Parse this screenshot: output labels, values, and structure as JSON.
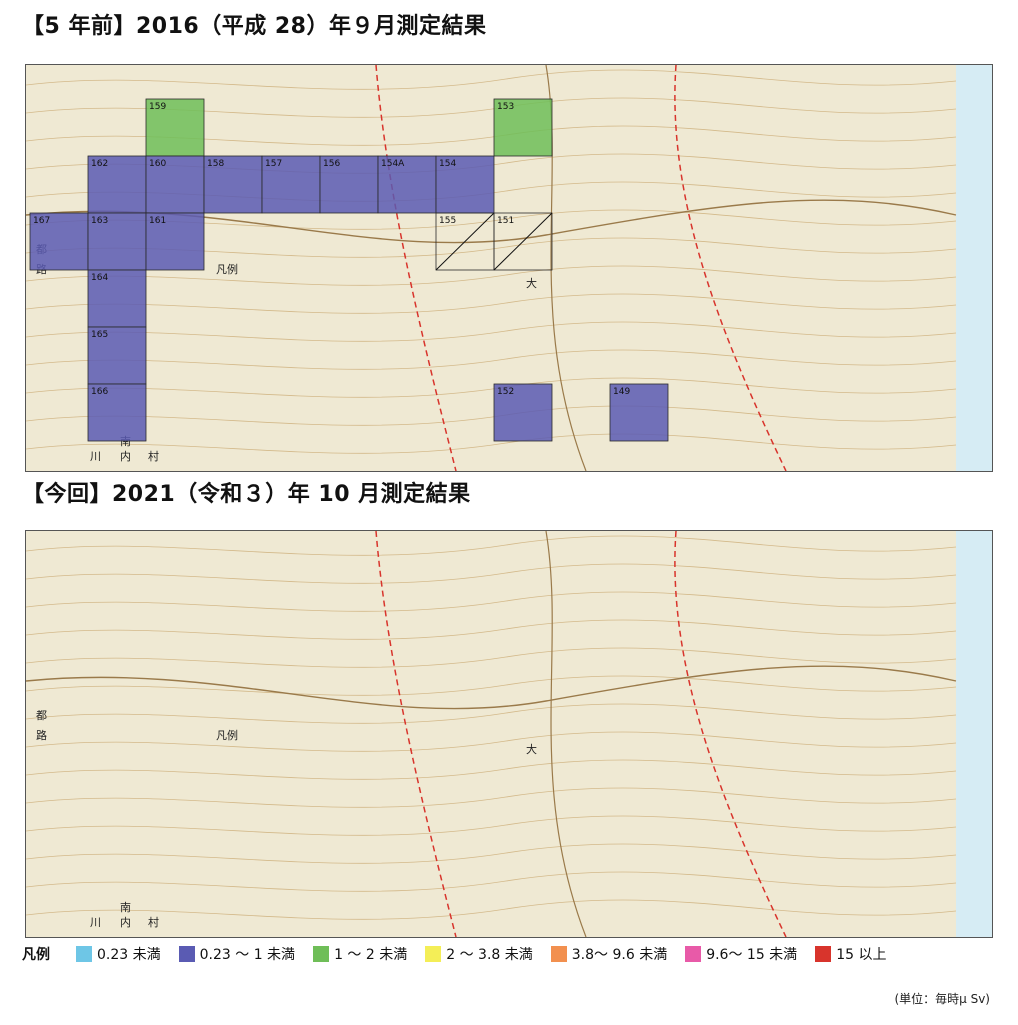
{
  "maps": [
    {
      "title": "【5 年前】2016（平成 28）年９月測定結果",
      "cells": [
        {
          "id": "159",
          "c": 0,
          "r": 0,
          "v": "g"
        },
        {
          "id": "153",
          "c": 6,
          "r": 0,
          "v": "g"
        },
        {
          "id": "162",
          "c": -1,
          "r": 1,
          "v": "b"
        },
        {
          "id": "160",
          "c": 0,
          "r": 1,
          "v": "b"
        },
        {
          "id": "158",
          "c": 1,
          "r": 1,
          "v": "b"
        },
        {
          "id": "157",
          "c": 2,
          "r": 1,
          "v": "b"
        },
        {
          "id": "156",
          "c": 3,
          "r": 1,
          "v": "b"
        },
        {
          "id": "154A",
          "c": 4,
          "r": 1,
          "v": "b"
        },
        {
          "id": "154",
          "c": 5,
          "r": 1,
          "v": "b"
        },
        {
          "id": "167",
          "c": -2,
          "r": 2,
          "v": "b"
        },
        {
          "id": "163",
          "c": -1,
          "r": 2,
          "v": "b"
        },
        {
          "id": "161",
          "c": 0,
          "r": 2,
          "v": "b"
        },
        {
          "id": "155",
          "c": 5,
          "r": 2,
          "v": "x"
        },
        {
          "id": "151",
          "c": 6,
          "r": 2,
          "v": "x"
        },
        {
          "id": "164",
          "c": -1,
          "r": 3,
          "v": "b"
        },
        {
          "id": "165",
          "c": -1,
          "r": 4,
          "v": "b"
        },
        {
          "id": "166",
          "c": -1,
          "r": 5,
          "v": "b"
        },
        {
          "id": "152",
          "c": 6,
          "r": 5,
          "v": "b"
        },
        {
          "id": "149",
          "c": 8,
          "r": 5,
          "v": "b"
        }
      ]
    },
    {
      "title": "【今回】2021（令和３）年 10 月測定結果",
      "cells": []
    }
  ],
  "place_names": [
    "大",
    "凡例",
    "南",
    "川",
    "内",
    "村",
    "都",
    "路"
  ],
  "legend": {
    "title": "凡例",
    "items": [
      {
        "label": "0.23 未満",
        "color": "#6ec6e6"
      },
      {
        "label": "0.23 ～ 1 未満",
        "color": "#5a5bb3"
      },
      {
        "label": "1 ～ 2 未満",
        "color": "#6fbe58"
      },
      {
        "label": "2 ～ 3.8 未満",
        "color": "#f4ee57"
      },
      {
        "label": "3.8～ 9.6 未満",
        "color": "#f2904f"
      },
      {
        "label": "9.6～ 15 未満",
        "color": "#e85aa8"
      },
      {
        "label": "15 以上",
        "color": "#d8342c"
      }
    ]
  },
  "unit_note": "(単位：毎時μ Sv)"
}
